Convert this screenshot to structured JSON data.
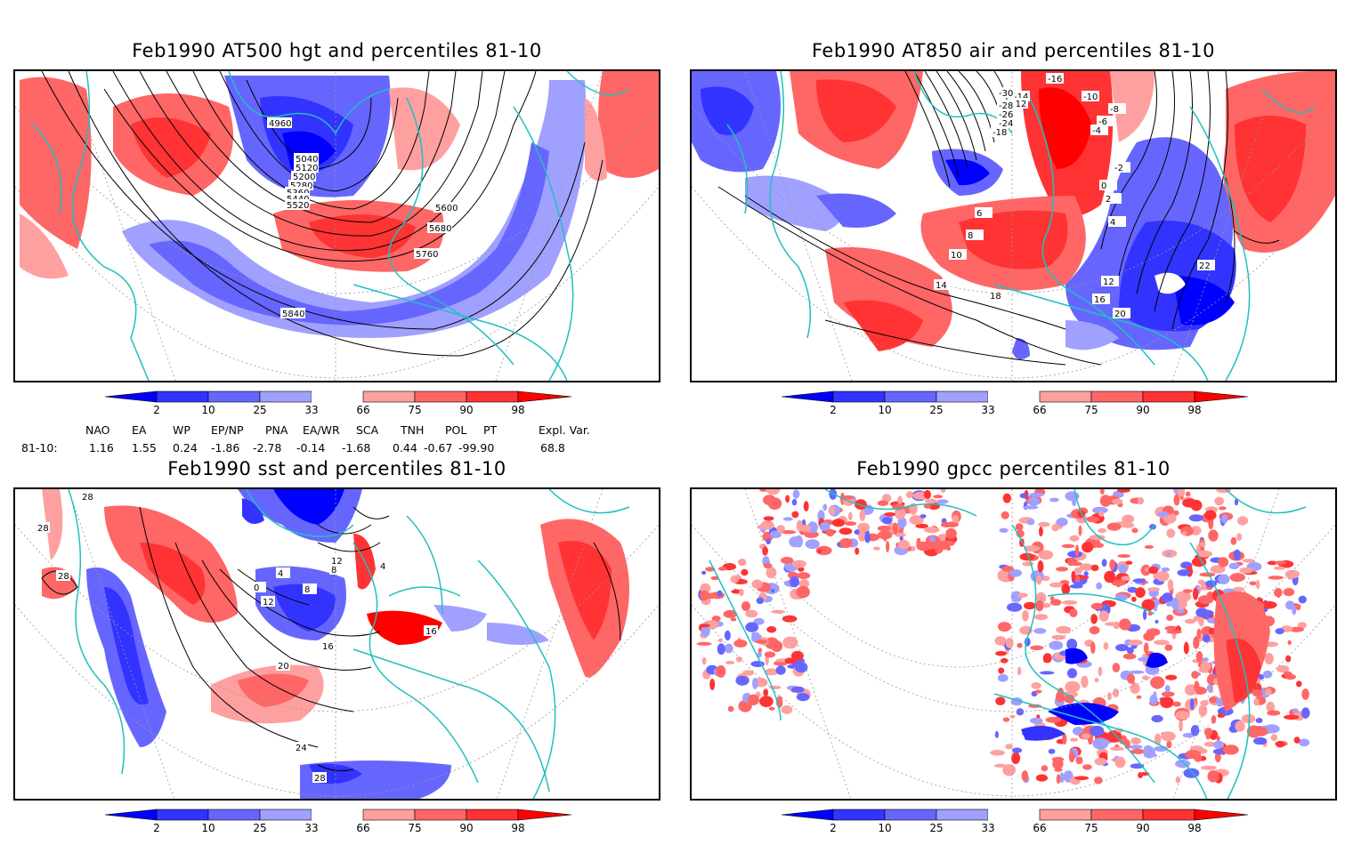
{
  "panels": [
    {
      "id": "hgt500",
      "title": "Feb1990 AT500 hgt and percentiles 81-10",
      "contour_labels": [
        "4960",
        "5040",
        "5120",
        "5200",
        "5280",
        "5360",
        "5440",
        "5520",
        "5600",
        "5680",
        "5760",
        "5840"
      ]
    },
    {
      "id": "air850",
      "title": "Feb1990 AT850 air and percentiles 81-10",
      "contour_labels": [
        "-16",
        "-14",
        "-12",
        "-10",
        "-8",
        "-6",
        "-4",
        "-2",
        "0",
        "2",
        "4",
        "6",
        "8",
        "10",
        "12",
        "14",
        "16",
        "18",
        "20",
        "22",
        "-18",
        "-24",
        "-26",
        "-28",
        "-30"
      ]
    },
    {
      "id": "sst",
      "title": "Feb1990 sst and percentiles 81-10",
      "contour_labels": [
        "28",
        "28",
        "28",
        "24",
        "20",
        "16",
        "12",
        "8",
        "4",
        "0",
        "4",
        "8",
        "12",
        "16",
        "28"
      ]
    },
    {
      "id": "gpcc",
      "title": "Feb1990 gpcc percentiles 81-10",
      "contour_labels": []
    }
  ],
  "colorbar": {
    "labels": [
      "2",
      "10",
      "25",
      "33",
      "66",
      "75",
      "90",
      "98"
    ],
    "colors": {
      "blue_extreme": "#0000ff",
      "blue_dark": "#3333ff",
      "blue_mid": "#6666ff",
      "blue_light": "#a0a0ff",
      "red_light": "#ffa0a0",
      "red_mid": "#ff6666",
      "red_dark": "#ff3333",
      "red_extreme": "#ff0000"
    }
  },
  "indices": {
    "names": [
      "NAO",
      "EA",
      "WP",
      "EP/NP",
      "PNA",
      "EA/WR",
      "SCA",
      "TNH",
      "POL",
      "PT",
      "Expl. Var."
    ],
    "row_label": "81-10:",
    "values": [
      "1.16",
      "1.55",
      "0.24",
      "-1.86",
      "-2.78",
      "-0.14",
      "-1.68",
      "0.44",
      "-0.67",
      "-99.90",
      "68.8"
    ]
  },
  "colors": {
    "coast": "#20c0c0",
    "contour": "#000000",
    "grid": "#999999"
  }
}
